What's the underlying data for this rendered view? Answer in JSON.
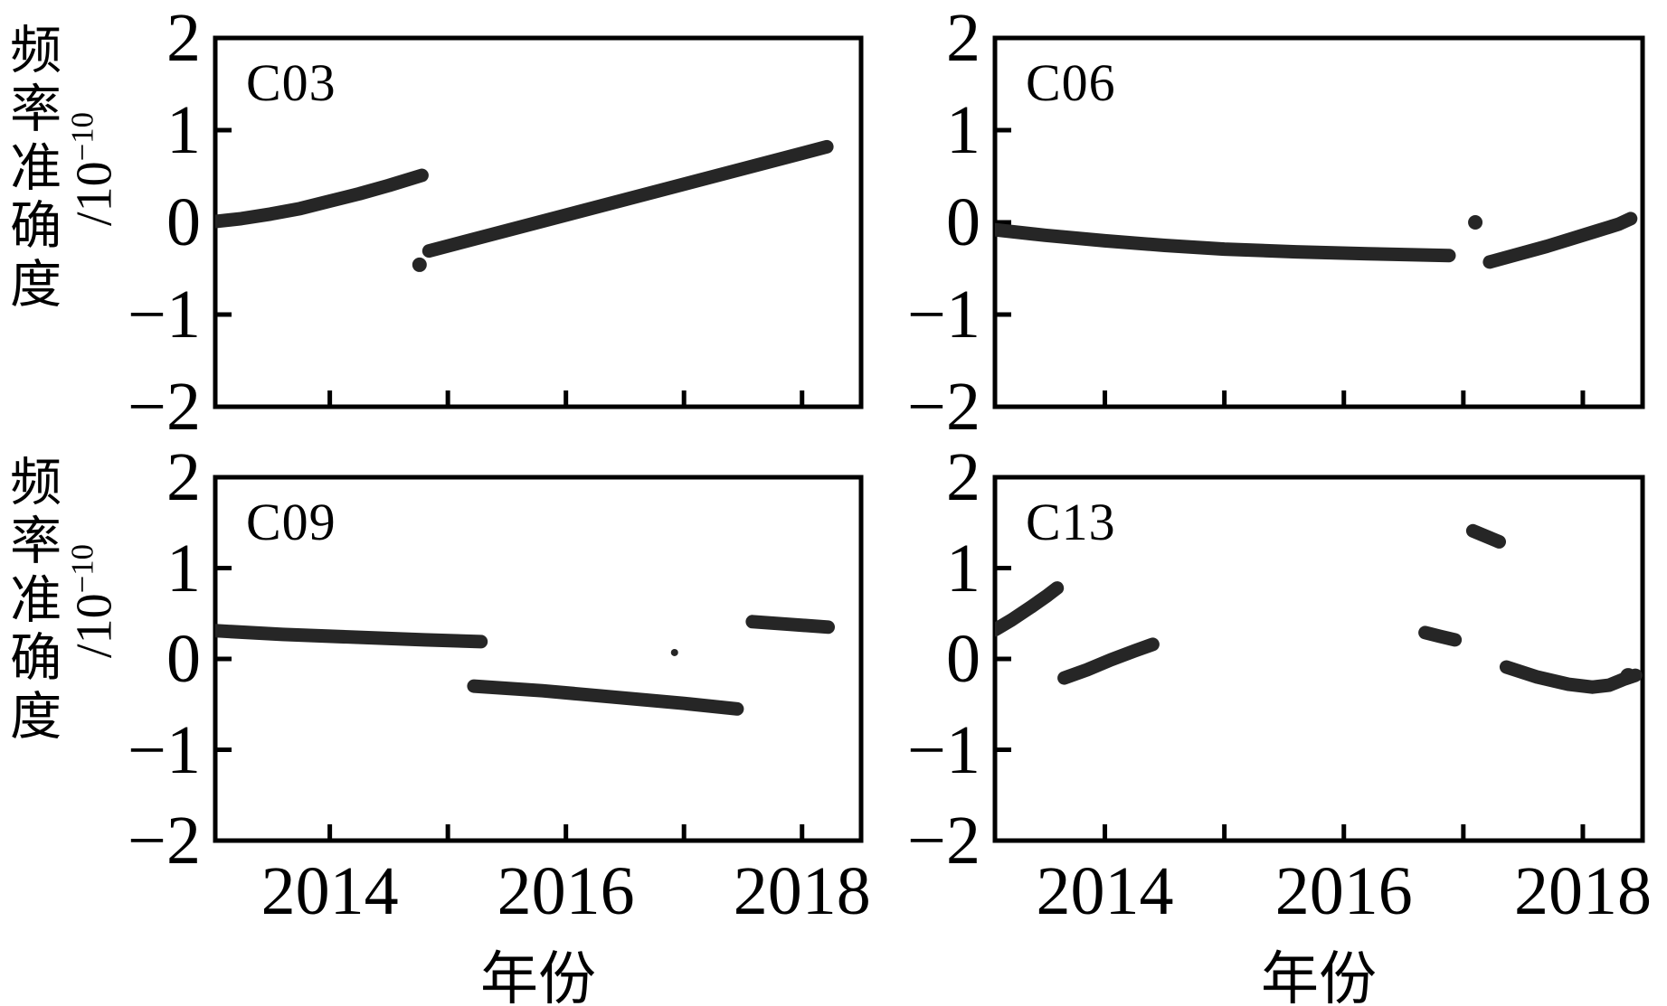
{
  "figure": {
    "background": "#ffffff",
    "axis_color": "#000000",
    "band_color": "#262626",
    "text_color": "#000000"
  },
  "ylabel": {
    "cjk": "频率准确度",
    "unit_prefix": "/10",
    "unit_exp": "−10"
  },
  "xlabel": "年份",
  "yticks": {
    "values": [
      2,
      1,
      0,
      -1,
      -2
    ],
    "labels": [
      "2",
      "1",
      "0",
      "−1",
      "−2"
    ]
  },
  "xticks": {
    "values": [
      2014,
      2015,
      2016,
      2017,
      2018
    ],
    "labeled_values": [
      2014,
      2016,
      2018
    ],
    "labels": {
      "2014": "2014",
      "2016": "2016",
      "2018": "2018"
    }
  },
  "chart_data": [
    {
      "type": "scatter",
      "label": "C03",
      "position": "top-left",
      "xlim": [
        2013.03,
        2018.5
      ],
      "ylim": [
        -2,
        2
      ],
      "grid": false,
      "segments": [
        [
          [
            2013.03,
            0.01
          ],
          [
            2013.25,
            0.04
          ],
          [
            2013.5,
            0.09
          ],
          [
            2013.75,
            0.15
          ],
          [
            2014.0,
            0.23
          ],
          [
            2014.25,
            0.31
          ],
          [
            2014.5,
            0.4
          ],
          [
            2014.78,
            0.51
          ]
        ],
        [
          [
            2014.84,
            -0.31
          ],
          [
            2018.21,
            0.82
          ]
        ]
      ],
      "outliers": [
        {
          "x": 2014.76,
          "y": -0.46,
          "r": 8
        }
      ]
    },
    {
      "type": "scatter",
      "label": "C06",
      "position": "top-right",
      "xlim": [
        2013.08,
        2018.5
      ],
      "ylim": [
        -2,
        2
      ],
      "grid": false,
      "segments": [
        [
          [
            2013.08,
            -0.08
          ],
          [
            2013.5,
            -0.14
          ],
          [
            2014.0,
            -0.2
          ],
          [
            2014.5,
            -0.25
          ],
          [
            2015.0,
            -0.29
          ],
          [
            2015.6,
            -0.32
          ],
          [
            2016.2,
            -0.34
          ],
          [
            2016.88,
            -0.36
          ]
        ],
        [
          [
            2017.22,
            -0.43
          ],
          [
            2017.7,
            -0.26
          ],
          [
            2018.1,
            -0.1
          ],
          [
            2018.3,
            -0.02
          ],
          [
            2018.4,
            0.04
          ]
        ]
      ],
      "outliers": [
        {
          "x": 2017.1,
          "y": 0.0,
          "r": 8
        }
      ]
    },
    {
      "type": "scatter",
      "label": "C09",
      "position": "bottom-left",
      "xlim": [
        2013.03,
        2018.5
      ],
      "ylim": [
        -2,
        2
      ],
      "grid": false,
      "segments": [
        [
          [
            2013.03,
            0.31
          ],
          [
            2013.6,
            0.27
          ],
          [
            2014.2,
            0.24
          ],
          [
            2014.8,
            0.21
          ],
          [
            2015.28,
            0.19
          ]
        ],
        [
          [
            2015.22,
            -0.3
          ],
          [
            2015.8,
            -0.35
          ],
          [
            2016.4,
            -0.42
          ],
          [
            2017.0,
            -0.49
          ],
          [
            2017.45,
            -0.55
          ]
        ],
        [
          [
            2017.58,
            0.41
          ],
          [
            2017.9,
            0.38
          ],
          [
            2018.22,
            0.35
          ]
        ]
      ],
      "outliers": [
        {
          "x": 2016.92,
          "y": 0.07,
          "r": 4
        }
      ]
    },
    {
      "type": "scatter",
      "label": "C13",
      "position": "bottom-right",
      "xlim": [
        2013.08,
        2018.5
      ],
      "ylim": [
        -2,
        2
      ],
      "grid": false,
      "segments": [
        [
          [
            2013.08,
            0.32
          ],
          [
            2013.22,
            0.43
          ],
          [
            2013.38,
            0.57
          ],
          [
            2013.52,
            0.7
          ],
          [
            2013.6,
            0.78
          ]
        ],
        [
          [
            2013.66,
            -0.21
          ],
          [
            2013.85,
            -0.12
          ],
          [
            2014.05,
            -0.01
          ],
          [
            2014.25,
            0.09
          ],
          [
            2014.4,
            0.16
          ]
        ],
        [
          [
            2016.68,
            0.29
          ],
          [
            2016.8,
            0.25
          ],
          [
            2016.93,
            0.21
          ]
        ],
        [
          [
            2017.08,
            1.41
          ],
          [
            2017.3,
            1.29
          ]
        ],
        [
          [
            2017.36,
            -0.09
          ],
          [
            2017.62,
            -0.2
          ],
          [
            2017.88,
            -0.28
          ],
          [
            2018.08,
            -0.31
          ],
          [
            2018.22,
            -0.29
          ],
          [
            2018.35,
            -0.22
          ],
          [
            2018.44,
            -0.18
          ]
        ]
      ],
      "outliers": [
        {
          "x": 2018.38,
          "y": -0.19,
          "r": 9
        }
      ]
    }
  ]
}
